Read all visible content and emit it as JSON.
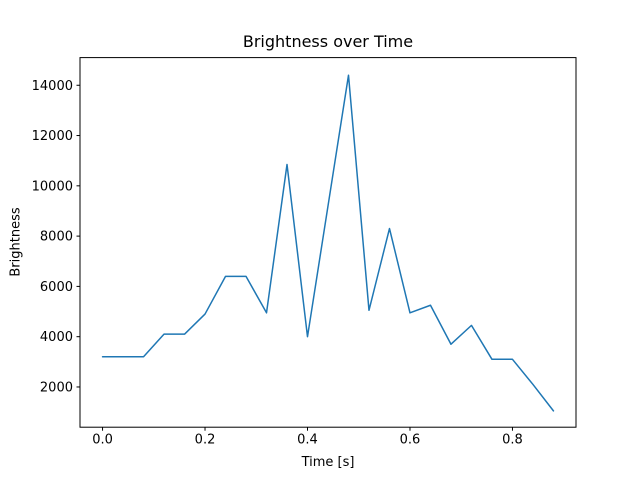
{
  "figure": {
    "background": "#ffffff"
  },
  "chart_data": {
    "type": "line",
    "title": "Brightness over Time",
    "xlabel": "Time [s]",
    "ylabel": "Brightness",
    "x": [
      0.0,
      0.04,
      0.08,
      0.12,
      0.16,
      0.2,
      0.24,
      0.28,
      0.32,
      0.36,
      0.4,
      0.44,
      0.48,
      0.52,
      0.56,
      0.6,
      0.64,
      0.68,
      0.72,
      0.76,
      0.8,
      0.84,
      0.88
    ],
    "series": [
      {
        "name": "brightness",
        "values": [
          3200,
          3200,
          3200,
          4100,
          4100,
          4900,
          6400,
          6400,
          4950,
          10850,
          4000,
          9200,
          14400,
          5050,
          8300,
          4950,
          5250,
          3700,
          4450,
          3100,
          3100,
          2100,
          1050
        ]
      }
    ],
    "xlim": [
      -0.044,
      0.924
    ],
    "ylim": [
      400,
      15100
    ],
    "xticks": [
      0.0,
      0.2,
      0.4,
      0.6,
      0.8
    ],
    "xtick_labels": [
      "0.0",
      "0.2",
      "0.4",
      "0.6",
      "0.8"
    ],
    "yticks": [
      2000,
      4000,
      6000,
      8000,
      10000,
      12000,
      14000
    ],
    "ytick_labels": [
      "2000",
      "4000",
      "6000",
      "8000",
      "10000",
      "12000",
      "14000"
    ],
    "grid": false,
    "legend_position": "none",
    "line_color": "#1f77b4",
    "axis_color": "#000000",
    "text_color": "#000000"
  }
}
